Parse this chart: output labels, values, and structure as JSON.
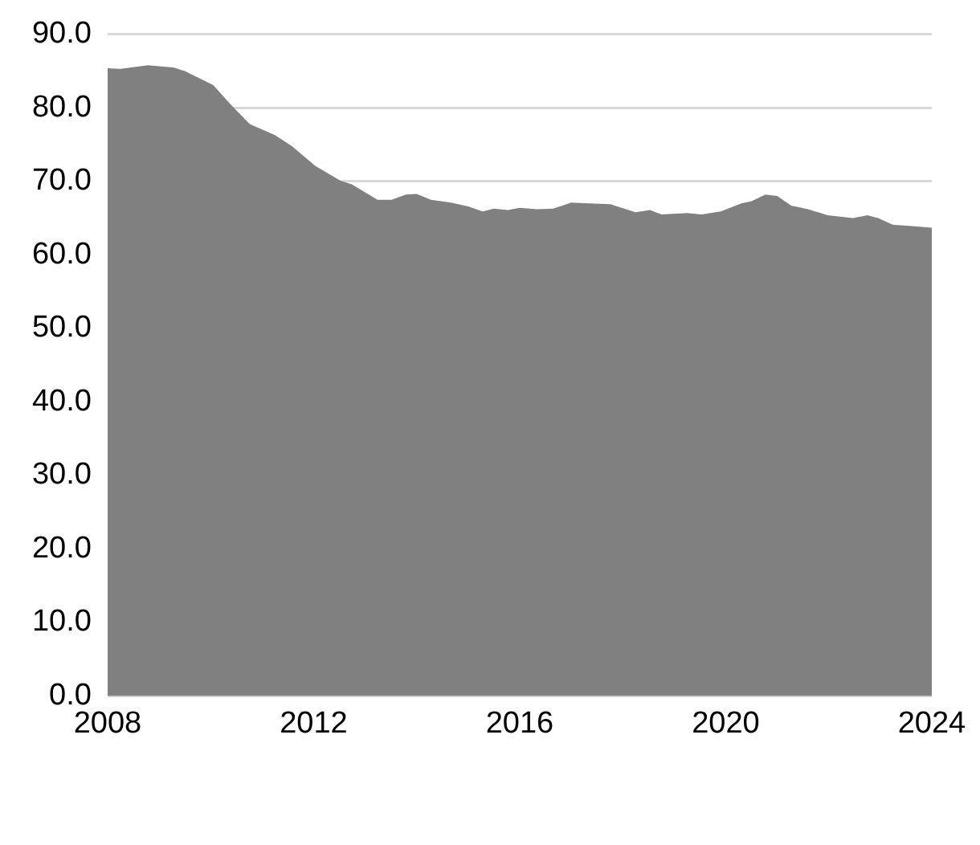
{
  "chart_data": {
    "type": "area",
    "color": "#808080",
    "x": [
      2008.0,
      2008.25,
      2008.78,
      2009.28,
      2009.5,
      2010.05,
      2010.4,
      2010.76,
      2011.25,
      2011.58,
      2012.03,
      2012.52,
      2012.74,
      2013.24,
      2013.51,
      2013.79,
      2014.0,
      2014.28,
      2014.67,
      2015.0,
      2015.28,
      2015.5,
      2015.77,
      2016.0,
      2016.33,
      2016.65,
      2017.0,
      2017.76,
      2018.25,
      2018.53,
      2018.75,
      2019.25,
      2019.53,
      2019.9,
      2020.3,
      2020.5,
      2020.77,
      2021.0,
      2021.27,
      2021.6,
      2021.98,
      2022.47,
      2022.75,
      2022.96,
      2023.24,
      2023.67,
      2024.0
    ],
    "values": [
      85.4,
      85.3,
      85.8,
      85.5,
      85.0,
      83.1,
      80.4,
      77.8,
      76.3,
      74.8,
      72.1,
      70.1,
      69.6,
      67.5,
      67.5,
      68.2,
      68.3,
      67.5,
      67.1,
      66.6,
      65.9,
      66.3,
      66.1,
      66.4,
      66.2,
      66.3,
      67.1,
      66.9,
      65.8,
      66.1,
      65.5,
      65.7,
      65.5,
      65.9,
      67.0,
      67.3,
      68.2,
      68.0,
      66.7,
      66.2,
      65.4,
      65.0,
      65.4,
      65.0,
      64.1,
      63.9,
      63.7
    ],
    "xlim": [
      2008,
      2024
    ],
    "xticks": [
      2008,
      2012,
      2016,
      2020,
      2024
    ],
    "ylim": [
      0,
      90
    ],
    "yticks": [
      {
        "value": 0,
        "label": "0.0"
      },
      {
        "value": 10,
        "label": "10.0"
      },
      {
        "value": 20,
        "label": "20.0"
      },
      {
        "value": 30,
        "label": "30.0"
      },
      {
        "value": 40,
        "label": "40.0"
      },
      {
        "value": 50,
        "label": "50.0"
      },
      {
        "value": 60,
        "label": "60.0"
      },
      {
        "value": 70,
        "label": "70.0"
      },
      {
        "value": 80,
        "label": "80.0"
      },
      {
        "value": 90,
        "label": "90.0"
      }
    ],
    "grid": "y"
  }
}
